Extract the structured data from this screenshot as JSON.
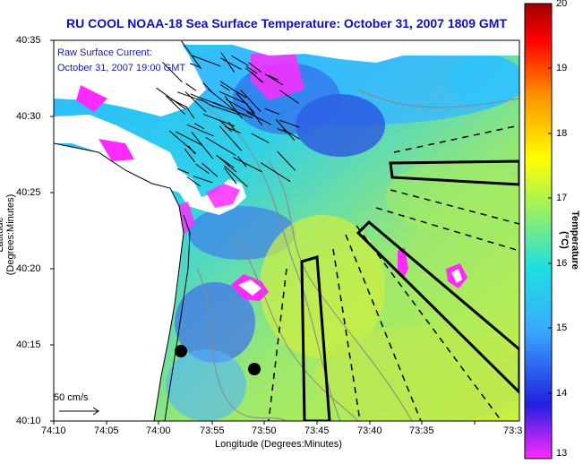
{
  "title": "RU COOL  NOAA-18  Sea Surface Temperature:  October 31, 2007 1809 GMT",
  "annotations": {
    "current_label": "Raw Surface Current:",
    "current_time": "October 31, 2007 19:00 GMT",
    "scale_label": "50 cm/s"
  },
  "axes": {
    "xlabel": "Longitude (Degrees:Minutes)",
    "ylabel": "Latitude (Degrees:Minutes)",
    "xticks": [
      "74:10",
      "74:05",
      "74:00",
      "73:55",
      "73:50",
      "73:45",
      "73:40",
      "73:35",
      "73:3"
    ],
    "yticks": [
      "40:35",
      "40:30",
      "40:25",
      "40:20",
      "40:15",
      "40:10"
    ]
  },
  "colorbar": {
    "label": "Temperature (°C)",
    "ticks": [
      "20",
      "19",
      "18",
      "17",
      "16",
      "15",
      "14",
      "13"
    ],
    "range": [
      13,
      20
    ],
    "colors": [
      "#ff2aff",
      "#2020e0",
      "#3aa8ff",
      "#1ee0e0",
      "#9ef060",
      "#ffff00",
      "#ff9000",
      "#ff0000",
      "#a00000"
    ]
  },
  "colors": {
    "title": "#1010b8",
    "land": "#ffffff",
    "coast": "#000000",
    "annotation": "#1818a8"
  }
}
